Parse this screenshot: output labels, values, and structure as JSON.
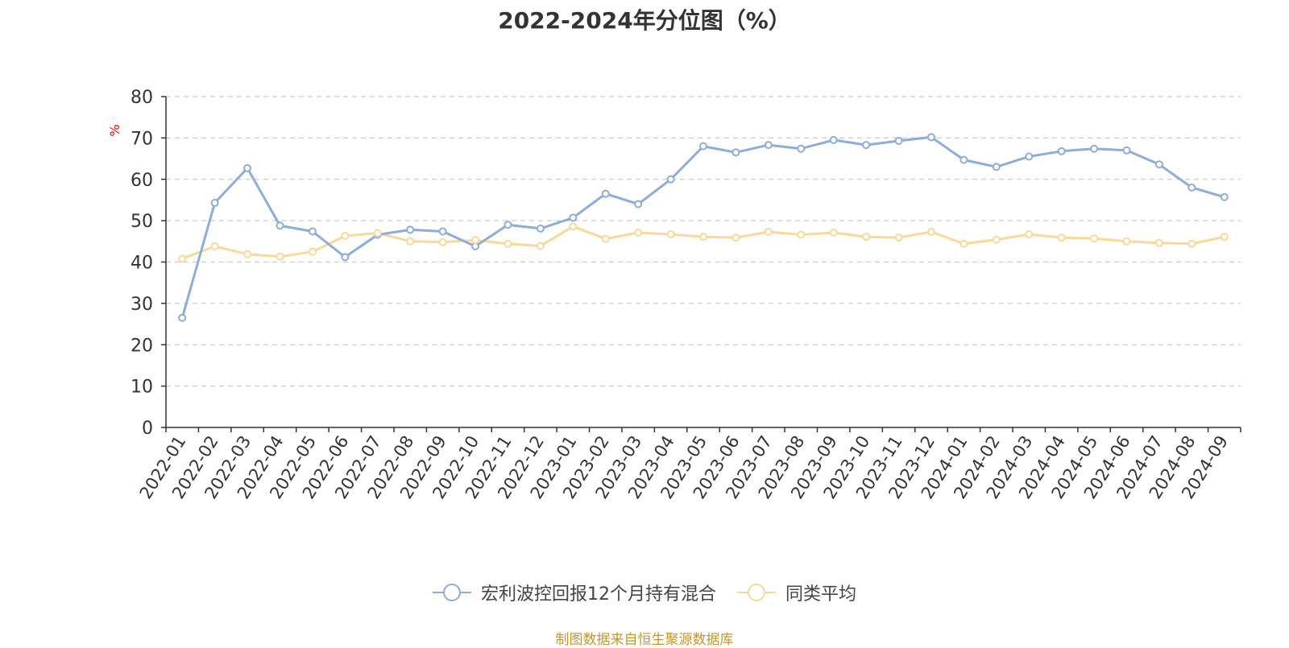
{
  "chart_data": {
    "type": "line",
    "title": "2022-2024年分位图（%）",
    "ylabel": "%",
    "xlabel": "",
    "ylim": [
      0,
      80
    ],
    "yticks": [
      0,
      10,
      20,
      30,
      40,
      50,
      60,
      70,
      80
    ],
    "grid": true,
    "legend_position": "bottom",
    "categories": [
      "2022-01",
      "2022-02",
      "2022-03",
      "2022-04",
      "2022-05",
      "2022-06",
      "2022-07",
      "2022-08",
      "2022-09",
      "2022-10",
      "2022-11",
      "2022-12",
      "2023-01",
      "2023-02",
      "2023-03",
      "2023-04",
      "2023-05",
      "2023-06",
      "2023-07",
      "2023-08",
      "2023-09",
      "2023-10",
      "2023-11",
      "2023-12",
      "2024-01",
      "2024-02",
      "2024-03",
      "2024-04",
      "2024-05",
      "2024-06",
      "2024-07",
      "2024-08",
      "2024-09"
    ],
    "series": [
      {
        "name": "宏利波控回报12个月持有混合",
        "color": "#8eadd9",
        "values": [
          26.5,
          54.3,
          62.7,
          48.8,
          47.4,
          41.2,
          46.6,
          47.8,
          47.4,
          43.8,
          49.0,
          48.1,
          50.7,
          56.5,
          54.0,
          60.0,
          68.0,
          66.5,
          68.3,
          67.4,
          69.5,
          68.3,
          69.3,
          70.2,
          64.7,
          63.0,
          65.5,
          66.8,
          67.4,
          67.0,
          63.6,
          58.0,
          55.7
        ]
      },
      {
        "name": "同类平均",
        "color": "#fbd89a",
        "values": [
          40.8,
          43.8,
          41.9,
          41.3,
          42.5,
          46.3,
          47.0,
          45.0,
          44.8,
          45.3,
          44.4,
          43.9,
          48.6,
          45.6,
          47.1,
          46.7,
          46.1,
          45.9,
          47.3,
          46.6,
          47.1,
          46.1,
          45.9,
          47.3,
          44.4,
          45.4,
          46.7,
          45.9,
          45.7,
          45.0,
          44.6,
          44.4,
          46.1
        ]
      }
    ],
    "source": "制图数据来自恒生聚源数据库"
  }
}
